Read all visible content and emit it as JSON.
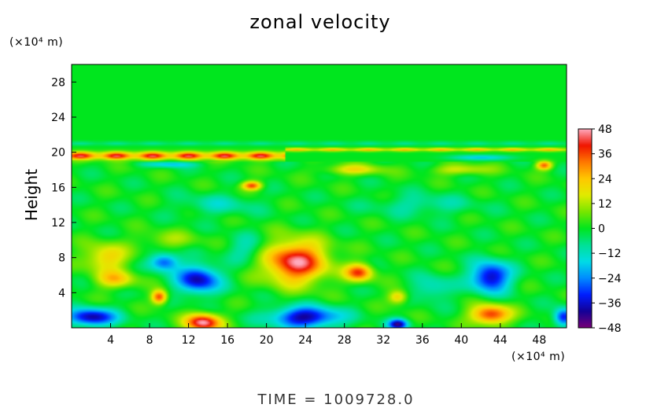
{
  "chart_data": {
    "type": "heatmap",
    "title": "zonal velocity",
    "ylabel": "Height",
    "y_unit": "(×10⁴ m)",
    "x_unit": "(×10⁴ m)",
    "x_ticks": [
      4,
      8,
      12,
      16,
      20,
      24,
      28,
      32,
      36,
      40,
      44,
      48
    ],
    "y_ticks": [
      4,
      8,
      12,
      16,
      20,
      24,
      28
    ],
    "xlim": [
      0,
      50.8
    ],
    "ylim": [
      0,
      30
    ],
    "colorbar": {
      "ticks": [
        48,
        36,
        24,
        12,
        0,
        -12,
        -24,
        -36,
        -48
      ],
      "labels": [
        "48",
        "36",
        "24",
        "12",
        "0",
        "−12",
        "−24",
        "−36",
        "−48"
      ],
      "range": [
        -48,
        48
      ]
    },
    "features": [
      {
        "x": 23,
        "y": 7.5,
        "sx": 3.2,
        "sy": 2.4,
        "value": 45
      },
      {
        "x": 29.5,
        "y": 6.3,
        "sx": 1.4,
        "sy": 1.0,
        "value": 36
      },
      {
        "x": 13.5,
        "y": 0.6,
        "sx": 1.8,
        "sy": 1.0,
        "value": 48
      },
      {
        "x": 9,
        "y": 3.5,
        "sx": 0.8,
        "sy": 0.8,
        "value": 38
      },
      {
        "x": 43,
        "y": 1.5,
        "sx": 2.0,
        "sy": 1.1,
        "value": 40
      },
      {
        "x": 3.5,
        "y": 8.0,
        "sx": 2.3,
        "sy": 1.6,
        "value": 22
      },
      {
        "x": 4.5,
        "y": 5.5,
        "sx": 2.0,
        "sy": 1.0,
        "value": 22
      },
      {
        "x": 18.5,
        "y": 16.2,
        "sx": 1.0,
        "sy": 0.5,
        "value": 36
      },
      {
        "x": 48.5,
        "y": 18.5,
        "sx": 0.8,
        "sy": 0.5,
        "value": 34
      },
      {
        "x": 33.5,
        "y": 3.5,
        "sx": 1.0,
        "sy": 0.8,
        "value": 24
      },
      {
        "x": 13,
        "y": 5.5,
        "sx": 2.2,
        "sy": 1.6,
        "value": -38
      },
      {
        "x": 9.5,
        "y": 7.5,
        "sx": 1.5,
        "sy": 1.0,
        "value": -30
      },
      {
        "x": 43,
        "y": 5.8,
        "sx": 2.0,
        "sy": 1.7,
        "value": -40
      },
      {
        "x": 24,
        "y": 1.2,
        "sx": 3.5,
        "sy": 1.2,
        "value": -40
      },
      {
        "x": 2,
        "y": 1.2,
        "sx": 2.5,
        "sy": 1.0,
        "value": -40
      },
      {
        "x": 33.5,
        "y": 0.4,
        "sx": 1.0,
        "sy": 0.6,
        "value": -40
      },
      {
        "x": 50.5,
        "y": 1.2,
        "sx": 1.0,
        "sy": 1.0,
        "value": -36
      },
      {
        "x": 37,
        "y": 4.5,
        "sx": 2.0,
        "sy": 1.4,
        "value": -14
      },
      {
        "x": 18,
        "y": 9.0,
        "sx": 2.0,
        "sy": 1.5,
        "value": -12
      },
      {
        "x": 15,
        "y": 14.0,
        "sx": 4.0,
        "sy": 1.2,
        "value": -10
      },
      {
        "x": 36,
        "y": 14.0,
        "sx": 5.0,
        "sy": 1.2,
        "value": -10
      },
      {
        "x": 10,
        "y": 18.6,
        "sx": 2.5,
        "sy": 0.35,
        "value": -18
      },
      {
        "x": 42,
        "y": 19.4,
        "sx": 3.0,
        "sy": 0.3,
        "value": -18
      },
      {
        "x": 29,
        "y": 18.0,
        "sx": 3.0,
        "sy": 0.6,
        "value": 18
      },
      {
        "x": 40,
        "y": 18.0,
        "sx": 3.0,
        "sy": 0.6,
        "value": 16
      },
      {
        "x": 10,
        "y": 10.0,
        "sx": 3.0,
        "sy": 1.0,
        "value": 10
      }
    ],
    "bands": [
      {
        "x0": 0,
        "x1": 22,
        "y": 19.6,
        "sy": 0.45,
        "value": 44
      },
      {
        "x0": 22,
        "x1": 50.8,
        "y": 20.3,
        "sy": 0.2,
        "value": 26
      },
      {
        "x0": 0,
        "x1": 50.8,
        "y": 21.0,
        "sy": 0.25,
        "value": -8
      }
    ]
  },
  "footer": {
    "time_label": "TIME  =  1009728.0"
  }
}
